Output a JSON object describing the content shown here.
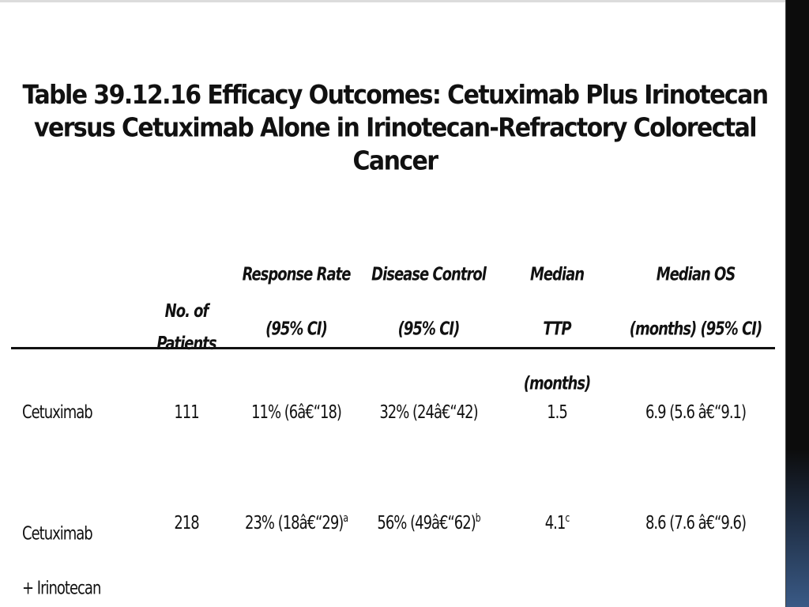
{
  "title": "Table 39.12.16 Efficacy Outcomes: Cetuximab Plus Irinotecan versus Cetuximab Alone in Irinotecan-Refractory Colorectal Cancer",
  "table": {
    "columns": [
      {
        "label": ""
      },
      {
        "label": "No. of Patients"
      },
      {
        "label": "Response Rate (95% CI)"
      },
      {
        "label": "Disease Control (95% CI)"
      },
      {
        "label": "Median TTP (months)"
      },
      {
        "label": "Median OS (months) (95% CI)"
      }
    ],
    "rows": [
      {
        "label": "Cetuximab",
        "patients": "111",
        "response": "11% (6â€“18)",
        "response_sup": "",
        "control": "32% (24â€“42)",
        "control_sup": "",
        "ttp": "1.5",
        "ttp_sup": "",
        "os": "6.9 (5.6 â€“9.1)"
      },
      {
        "label": "Cetuximab + Irinotecan",
        "patients": "218",
        "response": "23% (18â€“29)",
        "response_sup": "a",
        "control": "56% (49â€“62)",
        "control_sup": "b",
        "ttp": "4.1",
        "ttp_sup": "c",
        "os": "8.6 (7.6 â€“9.6)"
      }
    ]
  }
}
